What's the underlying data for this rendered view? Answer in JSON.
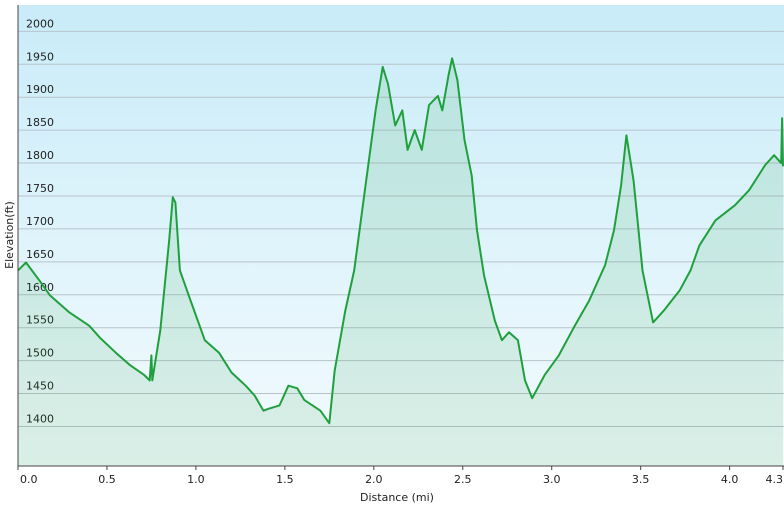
{
  "chart_data": {
    "type": "area-line",
    "xlabel": "Distance  (mi)",
    "ylabel": "Elevation(ft)",
    "color": "#1fa03c",
    "x": [
      0,
      0.045,
      0.12,
      0.18,
      0.29,
      0.4,
      0.46,
      0.55,
      0.63,
      0.71,
      0.74,
      0.75,
      0.755,
      0.8,
      0.85,
      0.87,
      0.885,
      0.91,
      0.97,
      1.05,
      1.13,
      1.2,
      1.28,
      1.33,
      1.38,
      1.41,
      1.47,
      1.52,
      1.57,
      1.61,
      1.7,
      1.75,
      1.78,
      1.84,
      1.89,
      1.95,
      2.01,
      2.05,
      2.08,
      2.12,
      2.16,
      2.19,
      2.23,
      2.27,
      2.31,
      2.36,
      2.385,
      2.42,
      2.44,
      2.47,
      2.51,
      2.55,
      2.58,
      2.62,
      2.68,
      2.72,
      2.76,
      2.81,
      2.85,
      2.89,
      2.96,
      3.04,
      3.13,
      3.21,
      3.3,
      3.35,
      3.39,
      3.42,
      3.46,
      3.51,
      3.57,
      3.63,
      3.72,
      3.78,
      3.83,
      3.92,
      4.03,
      4.11,
      4.2,
      4.25,
      4.29,
      4.295,
      4.3
    ],
    "values": [
      1637,
      1649,
      1622,
      1599,
      1573,
      1553,
      1535,
      1512,
      1493,
      1478,
      1470,
      1508,
      1470,
      1546,
      1683,
      1748,
      1740,
      1637,
      1591,
      1531,
      1512,
      1482,
      1462,
      1447,
      1424,
      1427,
      1432,
      1462,
      1458,
      1440,
      1424,
      1405,
      1485,
      1576,
      1637,
      1759,
      1880,
      1946,
      1920,
      1857,
      1880,
      1820,
      1850,
      1820,
      1888,
      1902,
      1880,
      1933,
      1959,
      1926,
      1835,
      1781,
      1698,
      1629,
      1561,
      1531,
      1543,
      1531,
      1470,
      1443,
      1478,
      1508,
      1553,
      1591,
      1645,
      1698,
      1766,
      1842,
      1773,
      1637,
      1558,
      1576,
      1607,
      1637,
      1675,
      1713,
      1736,
      1759,
      1797,
      1812,
      1800,
      1868,
      1795
    ],
    "xlim": [
      0,
      4.3
    ],
    "xticks": [
      {
        "value": 0,
        "label": "0.0"
      },
      0.5,
      {
        "value": 1,
        "label": "1.0"
      },
      1.5,
      {
        "value": 2,
        "label": "2.0"
      },
      2.5,
      {
        "value": 3,
        "label": "3.0"
      },
      3.5,
      {
        "value": 4,
        "label": "4.0"
      },
      4.3
    ],
    "ylim": [
      1340,
      2040
    ],
    "yticks": [
      1400,
      1450,
      1500,
      1550,
      1600,
      1650,
      1700,
      1750,
      1800,
      1850,
      1900,
      1950,
      2000
    ],
    "grid": true
  }
}
